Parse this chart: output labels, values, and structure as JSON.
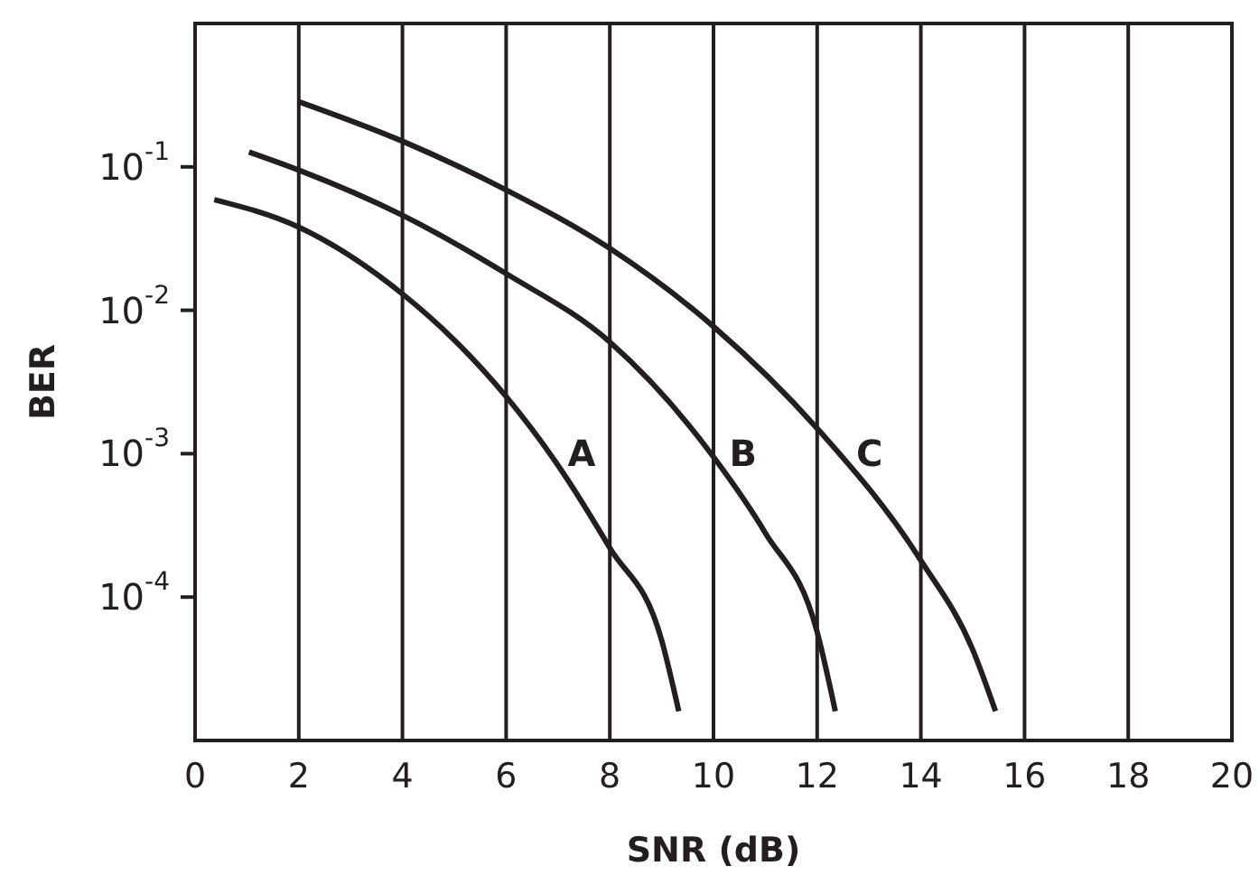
{
  "chart_data": {
    "type": "line",
    "xlabel": "SNR (dB)",
    "ylabel": "BER",
    "log": "y",
    "grid": "x",
    "xlim": [
      0,
      20
    ],
    "xticks": [
      0,
      2,
      4,
      6,
      8,
      10,
      12,
      14,
      16,
      18,
      20
    ],
    "ylim": [
      1e-05,
      1
    ],
    "yticks": [
      {
        "value": 0.1,
        "label": "10$^{-1}$"
      },
      {
        "value": 0.01,
        "label": "10$^{-2}$"
      },
      {
        "value": 0.001,
        "label": "10$^{-3}$"
      },
      {
        "value": 0.0001,
        "label": "10$^{-4}$"
      }
    ],
    "series": [
      {
        "name": "A",
        "color": "#231f20",
        "x": [
          0.37,
          2,
          4,
          5,
          6,
          7,
          8,
          9,
          9.33
        ],
        "values": [
          0.059,
          0.038,
          0.013,
          0.0062,
          0.0025,
          0.00083,
          0.00022,
          5e-05,
          1.6e-05
        ]
      },
      {
        "name": "B",
        "color": "#231f20",
        "x": [
          1.04,
          2,
          4,
          6,
          8,
          10,
          11,
          12,
          12.35
        ],
        "values": [
          0.127,
          0.095,
          0.046,
          0.018,
          0.006,
          0.00095,
          0.00028,
          5.7e-05,
          1.6e-05
        ]
      },
      {
        "name": "C",
        "color": "#231f20",
        "x": [
          2,
          4,
          6,
          8,
          10,
          12,
          14,
          15,
          15.44
        ],
        "values": [
          0.285,
          0.151,
          0.069,
          0.027,
          0.0077,
          0.0015,
          0.00018,
          4.3e-05,
          1.6e-05
        ]
      }
    ]
  }
}
